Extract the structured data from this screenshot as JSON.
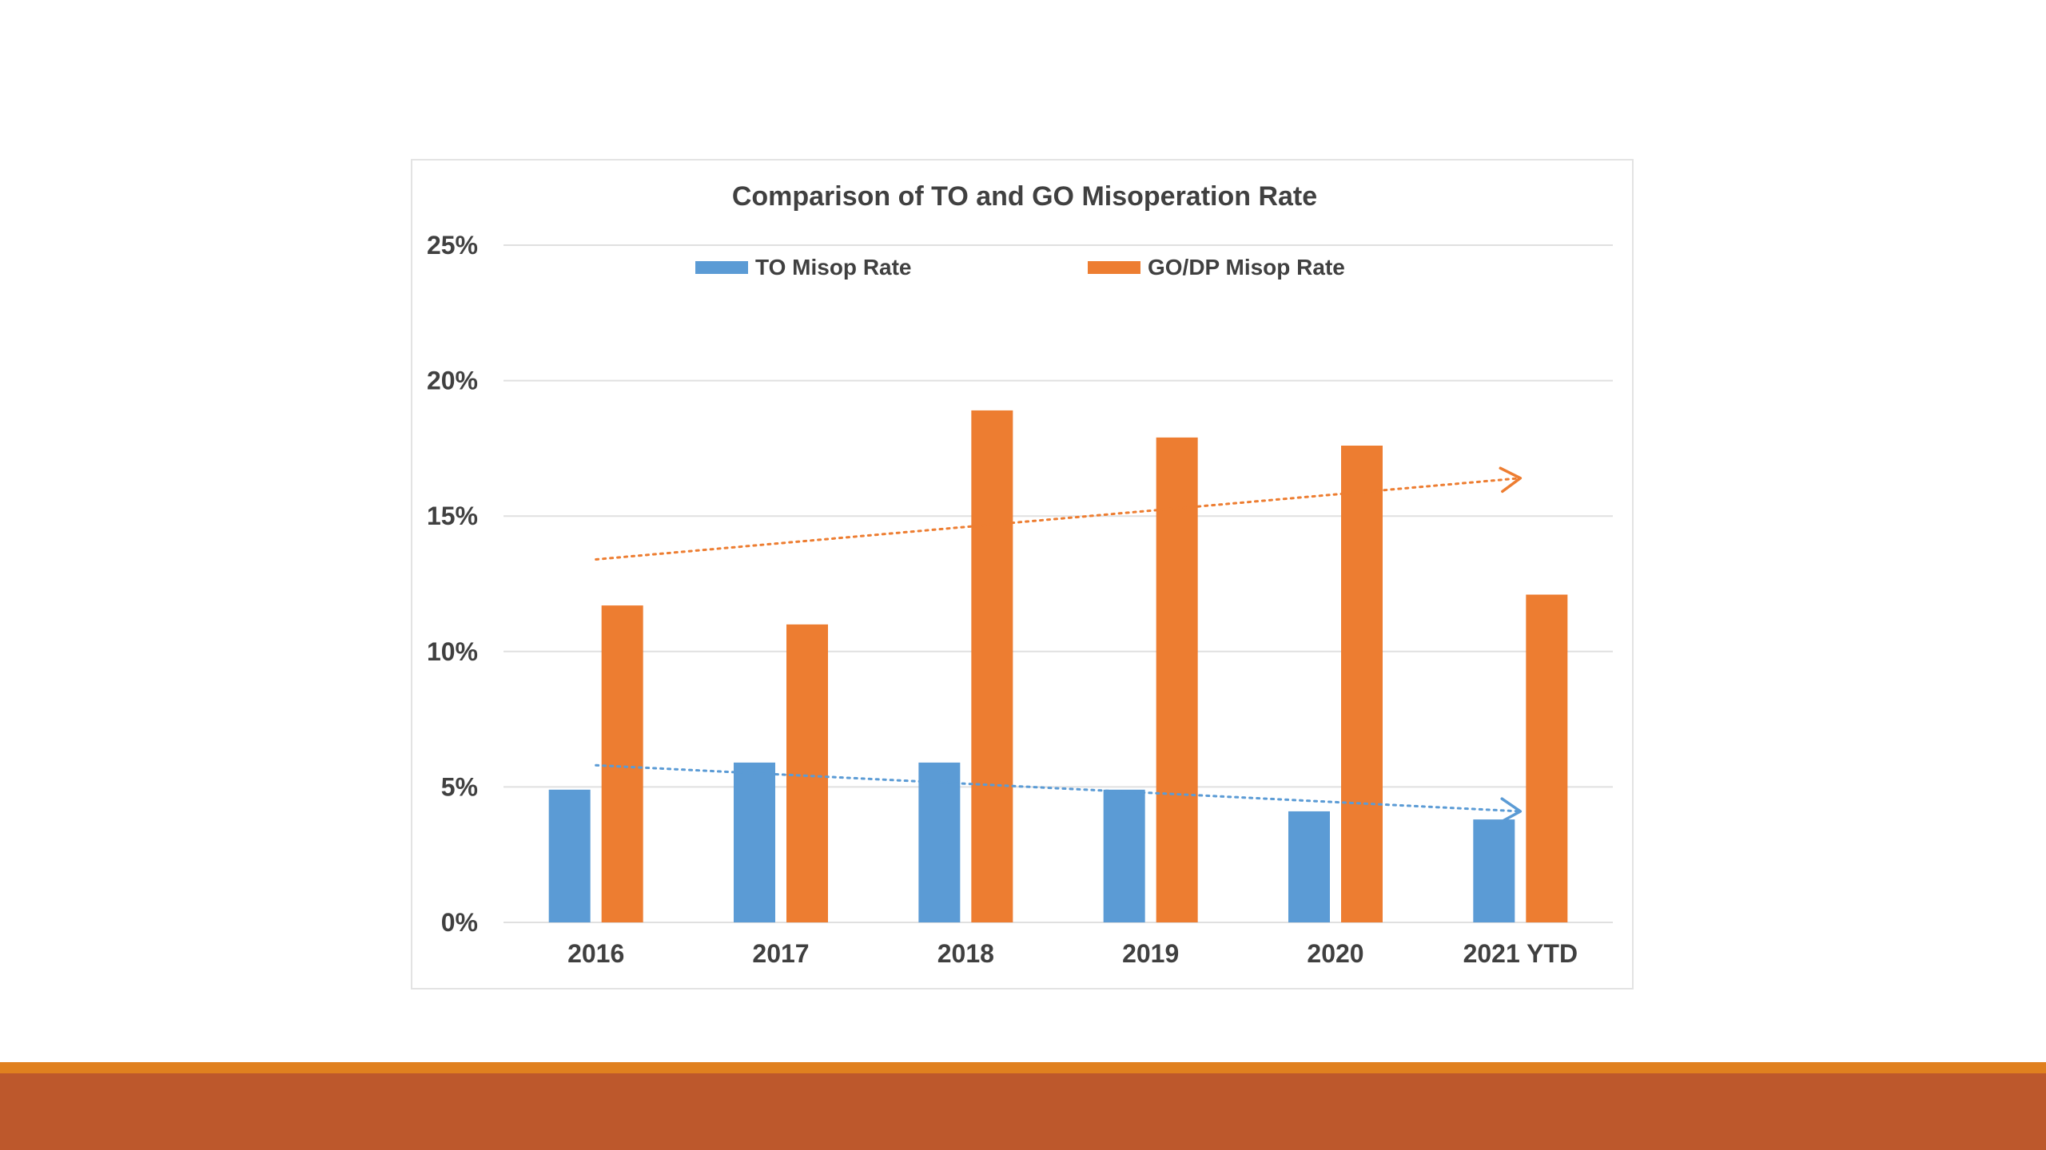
{
  "chart_data": {
    "type": "bar",
    "title": "Comparison of TO and GO Misoperation Rate",
    "categories": [
      "2016",
      "2017",
      "2018",
      "2019",
      "2020",
      "2021 YTD"
    ],
    "series": [
      {
        "name": "TO Misop Rate",
        "color": "#5b9bd5",
        "values": [
          4.9,
          5.9,
          5.9,
          4.9,
          4.1,
          3.8
        ]
      },
      {
        "name": "GO/DP Misop Rate",
        "color": "#ed7d31",
        "values": [
          11.7,
          11.0,
          18.9,
          17.9,
          17.6,
          12.1
        ]
      }
    ],
    "trendlines": [
      {
        "series": "TO Misop Rate",
        "color": "#5b9bd5",
        "style": "dotted-arrow",
        "start": [
          "2016",
          5.8
        ],
        "end": [
          "2021 YTD",
          4.1
        ]
      },
      {
        "series": "GO/DP Misop Rate",
        "color": "#ed7d31",
        "style": "dotted-arrow",
        "start": [
          "2016",
          13.4
        ],
        "end": [
          "2021 YTD",
          16.4
        ]
      }
    ],
    "y_ticks": [
      "0%",
      "5%",
      "10%",
      "15%",
      "20%",
      "25%"
    ],
    "ylim": [
      0,
      25
    ],
    "y_format": "percent",
    "grid": true,
    "legend": "top",
    "xlabel": "",
    "ylabel": ""
  },
  "colors": {
    "footer_stripe": "#e0801f",
    "footer_band": "#bd582c",
    "grid": "#e0e0e0",
    "text": "#404040"
  }
}
